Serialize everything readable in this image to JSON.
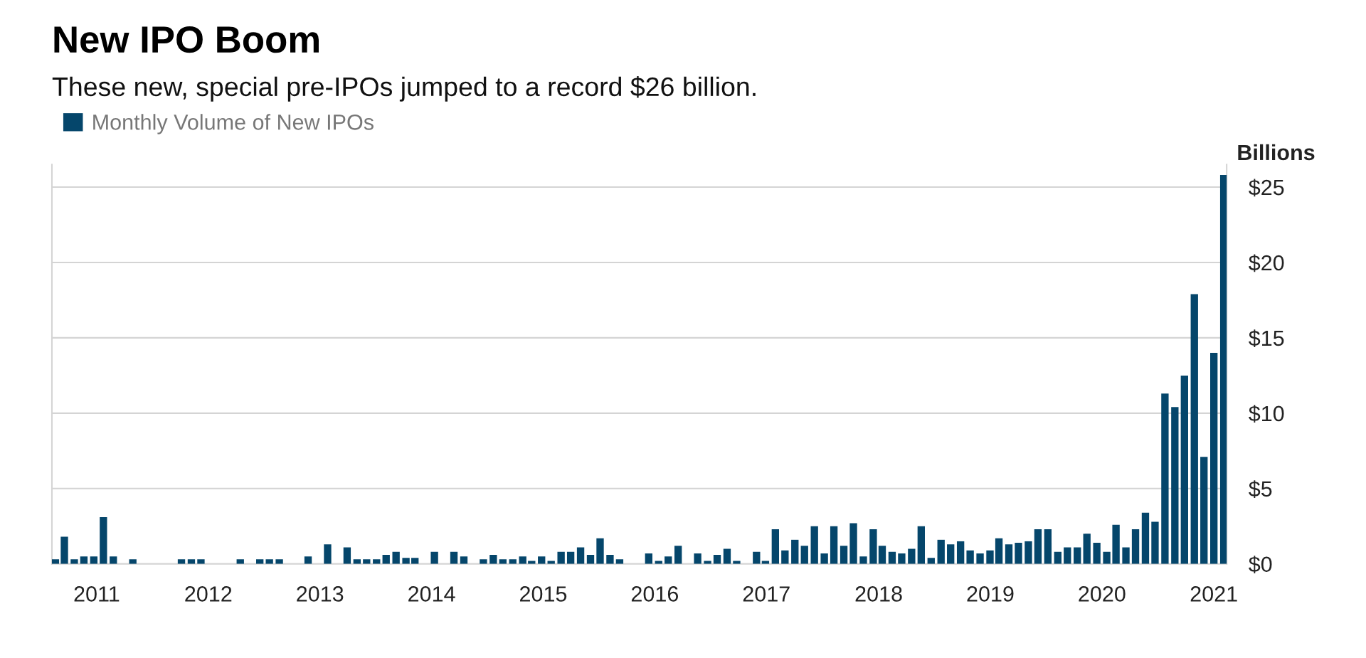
{
  "chart_data": {
    "type": "bar",
    "title": "New IPO Boom",
    "subtitle": "These new, special pre-IPOs jumped to a record $26 billion.",
    "ylabel": "Billions",
    "x": [
      "2011-02",
      "2011-03",
      "2011-04",
      "2011-05",
      "2011-06",
      "2011-07",
      "2011-08",
      "2011-09",
      "2011-10",
      "2011-11",
      "2011-12",
      "2012-01",
      "2012-02",
      "2012-03",
      "2012-04",
      "2012-05",
      "2012-06",
      "2012-07",
      "2012-08",
      "2012-09",
      "2012-10",
      "2012-11",
      "2012-12",
      "2013-01",
      "2013-02",
      "2013-03",
      "2013-04",
      "2013-05",
      "2013-06",
      "2013-07",
      "2013-08",
      "2013-09",
      "2013-10",
      "2013-11",
      "2013-12",
      "2014-01",
      "2014-02",
      "2014-03",
      "2014-04",
      "2014-05",
      "2014-06",
      "2014-07",
      "2014-08",
      "2014-09",
      "2014-10",
      "2014-11",
      "2014-12",
      "2015-01",
      "2015-02",
      "2015-03",
      "2015-04",
      "2015-05",
      "2015-06",
      "2015-07",
      "2015-08",
      "2015-09",
      "2015-10",
      "2015-11",
      "2015-12",
      "2016-01",
      "2016-02",
      "2016-03",
      "2016-04",
      "2016-05",
      "2016-06",
      "2016-07",
      "2016-08",
      "2016-09",
      "2016-10",
      "2016-11",
      "2016-12",
      "2017-01",
      "2017-02",
      "2017-03",
      "2017-04",
      "2017-05",
      "2017-06",
      "2017-07",
      "2017-08",
      "2017-09",
      "2017-10",
      "2017-11",
      "2017-12",
      "2018-01",
      "2018-02",
      "2018-03",
      "2018-04",
      "2018-05",
      "2018-06",
      "2018-07",
      "2018-08",
      "2018-09",
      "2018-10",
      "2018-11",
      "2018-12",
      "2019-01",
      "2019-02",
      "2019-03",
      "2019-04",
      "2019-05",
      "2019-06",
      "2019-07",
      "2019-08",
      "2019-09",
      "2019-10",
      "2019-11",
      "2019-12",
      "2020-01",
      "2020-02",
      "2020-03",
      "2020-04",
      "2020-05",
      "2020-06",
      "2020-07",
      "2020-08",
      "2020-09",
      "2020-10",
      "2020-11",
      "2020-12",
      "2021-01",
      "2021-02"
    ],
    "series": [
      {
        "name": "Monthly Volume of New IPOs",
        "color": "#05466b",
        "values": [
          0.3,
          1.8,
          0.3,
          0.5,
          0.5,
          3.1,
          0.5,
          0,
          0.3,
          0,
          0,
          0,
          0,
          0.3,
          0.3,
          0.3,
          0,
          0,
          0,
          0.3,
          0,
          0.3,
          0.3,
          0.3,
          0,
          0,
          0.5,
          0,
          1.3,
          0,
          1.1,
          0.3,
          0.3,
          0.3,
          0.6,
          0.8,
          0.4,
          0.4,
          0,
          0.8,
          0,
          0.8,
          0.5,
          0,
          0.3,
          0.6,
          0.3,
          0.3,
          0.5,
          0.2,
          0.5,
          0.2,
          0.8,
          0.8,
          1.1,
          0.6,
          1.7,
          0.6,
          0.3,
          0,
          0,
          0.7,
          0.2,
          0.5,
          1.2,
          0,
          0.7,
          0.2,
          0.6,
          1.0,
          0.2,
          0,
          0.8,
          0.2,
          2.3,
          0.9,
          1.6,
          1.2,
          2.5,
          0.7,
          2.5,
          1.2,
          2.7,
          0.5,
          2.3,
          1.2,
          0.8,
          0.7,
          1.0,
          2.5,
          0.4,
          1.6,
          1.3,
          1.5,
          0.9,
          0.7,
          0.9,
          1.7,
          1.3,
          1.4,
          1.5,
          2.3,
          2.3,
          0.8,
          1.1,
          1.1,
          2.0,
          1.4,
          0.8,
          2.6,
          1.1,
          2.3,
          3.4,
          2.8,
          11.3,
          10.4,
          12.5,
          17.9,
          7.1,
          14.0,
          25.8
        ]
      }
    ],
    "xlim": [
      "2011-01-21",
      "2021-02-10"
    ],
    "xticks": [
      {
        "value": "2011-06-10",
        "label": "2011"
      },
      {
        "value": "2012-05-24",
        "label": "2012"
      },
      {
        "value": "2013-05-08",
        "label": "2013"
      },
      {
        "value": "2014-04-22",
        "label": "2014"
      },
      {
        "value": "2015-04-06",
        "label": "2015"
      },
      {
        "value": "2016-03-20",
        "label": "2016"
      },
      {
        "value": "2017-03-04",
        "label": "2017"
      },
      {
        "value": "2018-02-18",
        "label": "2018"
      },
      {
        "value": "2019-02-02",
        "label": "2019"
      },
      {
        "value": "2020-01-17",
        "label": "2020"
      },
      {
        "value": "2021-01-01",
        "label": "2021"
      }
    ],
    "ylim": [
      0,
      26.5
    ],
    "yticks": [
      {
        "value": 0,
        "label": "$0"
      },
      {
        "value": 5,
        "label": "$5"
      },
      {
        "value": 10,
        "label": "$10"
      },
      {
        "value": 15,
        "label": "$15"
      },
      {
        "value": 20,
        "label": "$20"
      },
      {
        "value": 25,
        "label": "$25"
      }
    ],
    "grid": "y",
    "legend": "top left"
  }
}
